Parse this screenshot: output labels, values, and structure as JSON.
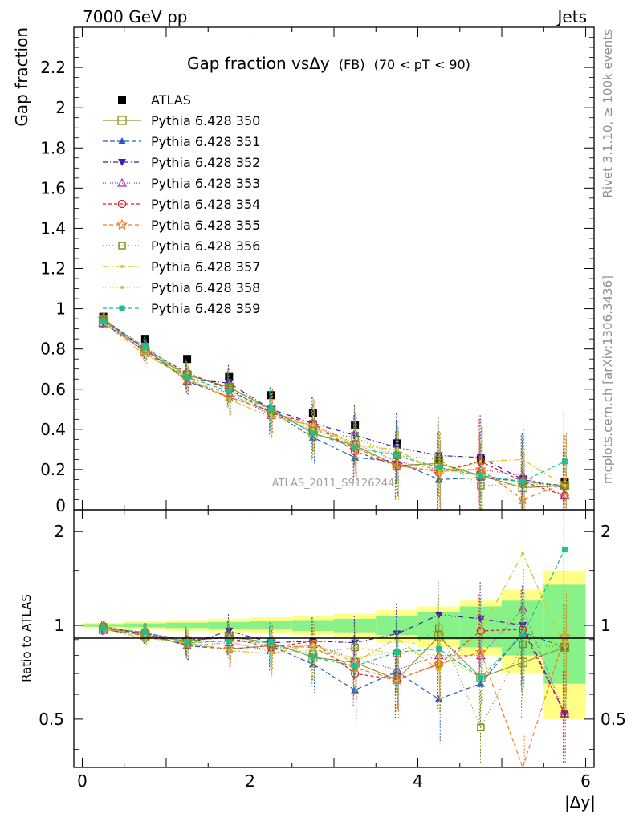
{
  "header": {
    "left": "7000 GeV pp",
    "right": "Jets"
  },
  "side_text": {
    "rivet": "Rivet 3.1.10, ≥ 100k events",
    "mcplots": "mcplots.cern.ch [arXiv:1306.3436]"
  },
  "analysis_label": "ATLAS_2011_S9126244",
  "colors": {
    "ATLAS": "#000000",
    "s350": "#8c9a28",
    "s351": "#1f5fbf",
    "s352": "#3b1fa8",
    "s353": "#b0308f",
    "s354": "#d8192a",
    "s355": "#f07a1e",
    "s356": "#7b8a14",
    "s357": "#d8c61a",
    "s358": "#b7d62a",
    "s359": "#1fbf8f",
    "band_yellow": "#ffff88",
    "band_green": "#88f288"
  },
  "chart_data": [
    {
      "type": "scatter",
      "title": "Gap fraction vsΔy",
      "title_suffix": "(FB)",
      "title_range": "(70 < pT <  90)",
      "ylabel": "Gap fraction",
      "xlim": [
        -0.1,
        6.1
      ],
      "ylim": [
        0,
        2.4
      ],
      "grid": false,
      "legend_placement": "top-left",
      "y_ticks": [
        0,
        0.2,
        0.4,
        0.6,
        0.8,
        1,
        1.2,
        1.4,
        1.6,
        1.8,
        2,
        2.2
      ],
      "y_tick_labels": [
        "0",
        "0.2",
        "0.4",
        "0.6",
        "0.8",
        "1",
        "1.2",
        "1.4",
        "1.6",
        "1.8",
        "2",
        "2.2"
      ],
      "x": [
        0.25,
        0.75,
        1.25,
        1.75,
        2.25,
        2.75,
        3.25,
        3.75,
        4.25,
        4.75,
        5.25,
        5.75
      ],
      "series": [
        {
          "name": "ATLAS",
          "key": "ATLAS",
          "marker": "square-filled",
          "values": [
            0.96,
            0.85,
            0.75,
            0.66,
            0.57,
            0.48,
            0.42,
            0.33,
            0.25,
            0.25,
            0.15,
            0.14
          ]
        },
        {
          "name": "Pythia 6.428 350",
          "key": "s350",
          "marker": "square-open",
          "dash": "",
          "values": [
            0.93,
            0.79,
            0.67,
            0.61,
            0.5,
            0.38,
            0.32,
            0.22,
            0.23,
            0.17,
            0.11,
            0.12
          ]
        },
        {
          "name": "Pythia 6.428 351",
          "key": "s351",
          "marker": "triangle-up",
          "dash": "6,3",
          "values": [
            0.94,
            0.8,
            0.64,
            0.56,
            0.49,
            0.36,
            0.26,
            0.24,
            0.15,
            0.16,
            0.14,
            0.12
          ]
        },
        {
          "name": "Pythia 6.428 352",
          "key": "s352",
          "marker": "triangle-down",
          "dash": "6,3,1,3",
          "values": [
            0.93,
            0.79,
            0.65,
            0.63,
            0.5,
            0.43,
            0.37,
            0.31,
            0.27,
            0.26,
            0.15,
            0.11
          ]
        },
        {
          "name": "Pythia 6.428 353",
          "key": "s353",
          "marker": "triangle-up-open",
          "dash": "1,2",
          "values": [
            0.93,
            0.8,
            0.64,
            0.58,
            0.47,
            0.42,
            0.33,
            0.24,
            0.2,
            0.2,
            0.17,
            0.07
          ]
        },
        {
          "name": "Pythia 6.428 354",
          "key": "s354",
          "marker": "circle-open",
          "dash": "4,3",
          "values": [
            0.95,
            0.8,
            0.68,
            0.6,
            0.48,
            0.43,
            0.29,
            0.22,
            0.19,
            0.24,
            0.14,
            0.07
          ]
        },
        {
          "name": "Pythia 6.428 355",
          "key": "s355",
          "marker": "star-open",
          "dash": "5,3",
          "values": [
            0.95,
            0.78,
            0.65,
            0.56,
            0.49,
            0.41,
            0.31,
            0.22,
            0.19,
            0.2,
            0.05,
            0.13
          ]
        },
        {
          "name": "Pythia 6.428 356",
          "key": "s356",
          "marker": "square-open-small",
          "dash": "1,3",
          "values": [
            0.95,
            0.81,
            0.67,
            0.61,
            0.49,
            0.39,
            0.36,
            0.27,
            0.25,
            0.12,
            0.13,
            0.12
          ]
        },
        {
          "name": "Pythia 6.428 357",
          "key": "s357",
          "marker": "dot",
          "dash": "8,3,2,3",
          "values": [
            0.93,
            0.77,
            0.66,
            0.55,
            0.46,
            0.42,
            0.32,
            0.3,
            0.18,
            0.24,
            0.25,
            0.12
          ]
        },
        {
          "name": "Pythia 6.428 358",
          "key": "s358",
          "marker": "dot",
          "dash": "1,2",
          "values": [
            0.93,
            0.79,
            0.66,
            0.59,
            0.47,
            0.4,
            0.33,
            0.27,
            0.2,
            0.17,
            0.14,
            0.12
          ]
        },
        {
          "name": "Pythia 6.428 359",
          "key": "s359",
          "marker": "square-filled-small",
          "dash": "5,3",
          "values": [
            0.94,
            0.81,
            0.66,
            0.59,
            0.5,
            0.38,
            0.31,
            0.27,
            0.21,
            0.17,
            0.14,
            0.24
          ]
        }
      ]
    },
    {
      "type": "line",
      "ylabel": "Ratio to ATLAS",
      "xlabel": "|Δy|",
      "xlim": [
        -0.1,
        6.1
      ],
      "ylim": [
        0.35,
        2.35
      ],
      "y_scale": "log",
      "y_ticks": [
        0.5,
        1,
        2
      ],
      "y_tick_labels": [
        "0.5",
        "1",
        "2"
      ],
      "x_ticks": [
        0,
        2,
        4,
        6
      ],
      "x_tick_labels": [
        "0",
        "2",
        "4",
        "6"
      ],
      "x": [
        0.25,
        0.75,
        1.25,
        1.75,
        2.25,
        2.75,
        3.25,
        3.75,
        4.25,
        4.75,
        5.25,
        5.75
      ],
      "band_yellow_halfwidth": [
        0.02,
        0.03,
        0.04,
        0.05,
        0.06,
        0.07,
        0.09,
        0.12,
        0.15,
        0.2,
        0.3,
        0.5
      ],
      "band_green_halfwidth": [
        0.01,
        0.015,
        0.02,
        0.025,
        0.03,
        0.04,
        0.05,
        0.07,
        0.1,
        0.15,
        0.2,
        0.35
      ],
      "series": [
        {
          "name": "Pythia 6.428 350",
          "key": "s350",
          "marker": "square-open",
          "dash": "",
          "values": [
            0.97,
            0.93,
            0.89,
            0.92,
            0.88,
            0.79,
            0.76,
            0.67,
            0.92,
            0.68,
            0.76,
            0.85
          ]
        },
        {
          "name": "Pythia 6.428 351",
          "key": "s351",
          "marker": "triangle-up",
          "dash": "6,3",
          "values": [
            0.98,
            0.94,
            0.86,
            0.84,
            0.86,
            0.75,
            0.62,
            0.71,
            0.58,
            0.65,
            0.95,
            0.85
          ]
        },
        {
          "name": "Pythia 6.428 352",
          "key": "s352",
          "marker": "triangle-down",
          "dash": "6,3,1,3",
          "values": [
            0.97,
            0.93,
            0.87,
            0.96,
            0.88,
            0.89,
            0.88,
            0.94,
            1.08,
            1.05,
            1.0,
            0.52
          ]
        },
        {
          "name": "Pythia 6.428 353",
          "key": "s353",
          "marker": "triangle-up-open",
          "dash": "1,2",
          "values": [
            0.97,
            0.95,
            0.86,
            0.88,
            0.83,
            0.87,
            0.78,
            0.72,
            0.8,
            0.8,
            1.13,
            0.52
          ]
        },
        {
          "name": "Pythia 6.428 354",
          "key": "s354",
          "marker": "circle-open",
          "dash": "4,3",
          "values": [
            0.99,
            0.94,
            0.9,
            0.91,
            0.85,
            0.89,
            0.7,
            0.67,
            0.75,
            0.96,
            0.97,
            0.52
          ]
        },
        {
          "name": "Pythia 6.428 355",
          "key": "s355",
          "marker": "star-open",
          "dash": "5,3",
          "values": [
            0.99,
            0.92,
            0.87,
            0.84,
            0.86,
            0.85,
            0.73,
            0.67,
            0.75,
            0.82,
            0.33,
            0.92
          ]
        },
        {
          "name": "Pythia 6.428 356",
          "key": "s356",
          "marker": "square-open-small",
          "dash": "1,3",
          "values": [
            0.99,
            0.95,
            0.89,
            0.92,
            0.86,
            0.81,
            0.85,
            0.81,
            0.98,
            0.47,
            0.87,
            0.85
          ]
        },
        {
          "name": "Pythia 6.428 357",
          "key": "s357",
          "marker": "dot",
          "dash": "8,3,2,3",
          "values": [
            0.97,
            0.91,
            0.88,
            0.83,
            0.81,
            0.87,
            0.76,
            0.91,
            0.72,
            0.96,
            1.7,
            0.85
          ]
        },
        {
          "name": "Pythia 6.428 358",
          "key": "s358",
          "marker": "dot",
          "dash": "1,2",
          "values": [
            0.97,
            0.93,
            0.88,
            0.89,
            0.82,
            0.83,
            0.79,
            0.82,
            0.8,
            0.68,
            0.95,
            0.85
          ]
        },
        {
          "name": "Pythia 6.428 359",
          "key": "s359",
          "marker": "square-filled-small",
          "dash": "5,3",
          "values": [
            0.98,
            0.95,
            0.88,
            0.89,
            0.88,
            0.79,
            0.74,
            0.82,
            0.84,
            0.68,
            0.93,
            1.75
          ]
        }
      ]
    }
  ]
}
